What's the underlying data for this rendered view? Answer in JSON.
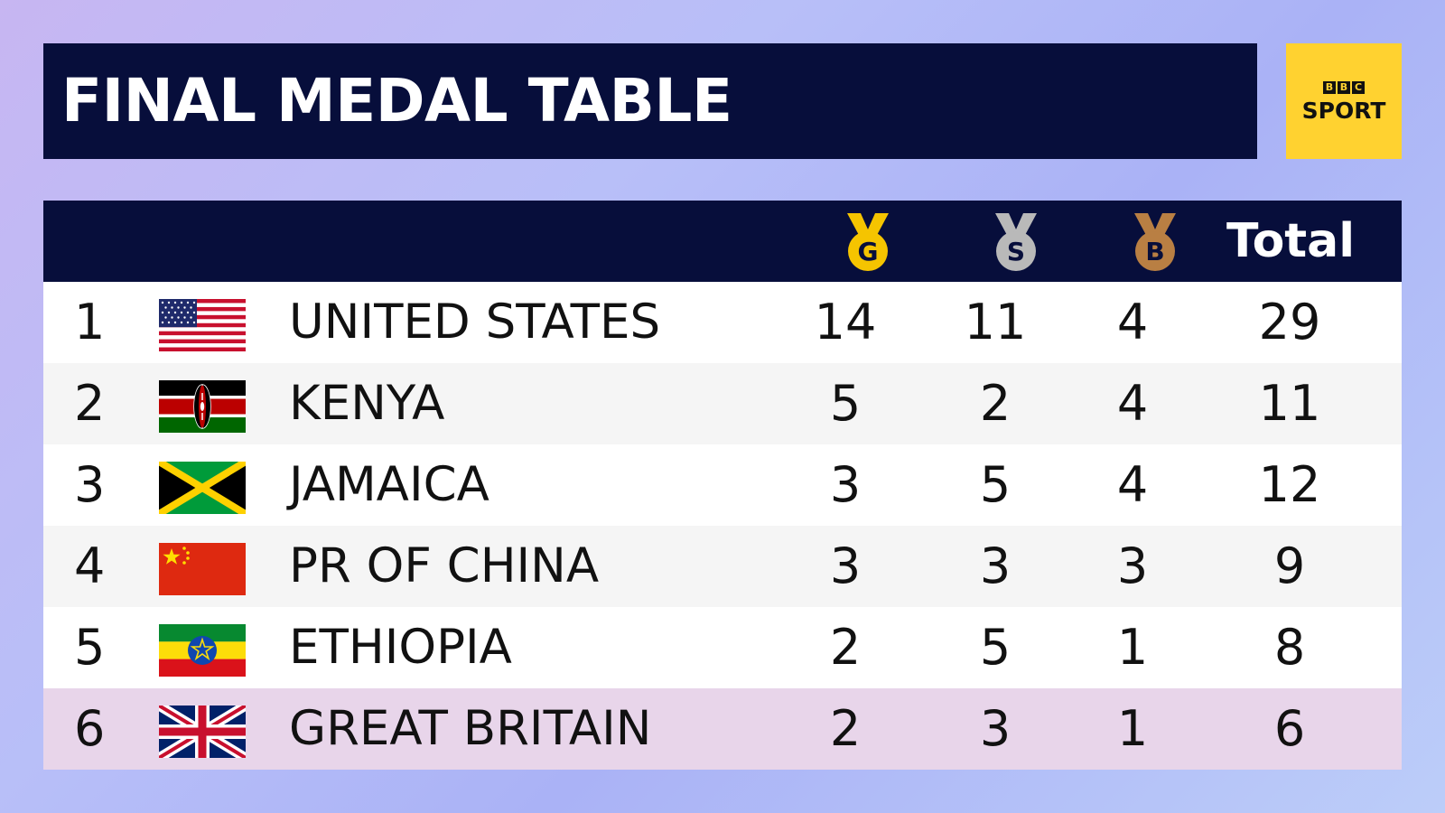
{
  "title": "FINAL MEDAL TABLE",
  "logo": {
    "letters": [
      "B",
      "B",
      "C"
    ],
    "sport": "SPORT",
    "color": "#ffd230"
  },
  "header": {
    "gold_letter": "G",
    "silver_letter": "S",
    "bronze_letter": "B",
    "total": "Total"
  },
  "colors": {
    "navy": "#070e3b",
    "gold": "#f5c400",
    "silver": "#b9b9b9",
    "bronze": "#b97f43",
    "highlight": "#e8d5ea"
  },
  "rows": [
    {
      "rank": "1",
      "country": "UNITED STATES",
      "flag": "usa-flag-icon",
      "gold": "14",
      "silver": "11",
      "bronze": "4",
      "total": "29"
    },
    {
      "rank": "2",
      "country": "KENYA",
      "flag": "kenya-flag-icon",
      "gold": "5",
      "silver": "2",
      "bronze": "4",
      "total": "11"
    },
    {
      "rank": "3",
      "country": "JAMAICA",
      "flag": "jamaica-flag-icon",
      "gold": "3",
      "silver": "5",
      "bronze": "4",
      "total": "12"
    },
    {
      "rank": "4",
      "country": "PR OF CHINA",
      "flag": "china-flag-icon",
      "gold": "3",
      "silver": "3",
      "bronze": "3",
      "total": "9"
    },
    {
      "rank": "5",
      "country": "ETHIOPIA",
      "flag": "ethiopia-flag-icon",
      "gold": "2",
      "silver": "5",
      "bronze": "1",
      "total": "8"
    },
    {
      "rank": "6",
      "country": "GREAT BRITAIN",
      "flag": "great-britain-flag-icon",
      "gold": "2",
      "silver": "3",
      "bronze": "1",
      "total": "6"
    }
  ]
}
